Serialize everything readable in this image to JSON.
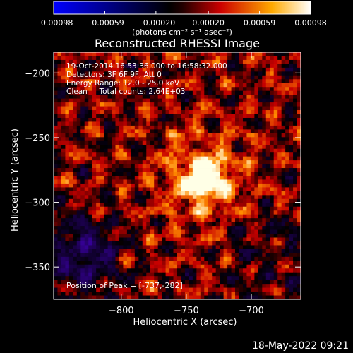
{
  "chart_data": {
    "type": "heatmap",
    "title": "Reconstructed RHESSI Image",
    "xlabel": "Heliocentric X (arcsec)",
    "ylabel": "Heliocentric Y (arcsec)",
    "xlim": [
      -852,
      -662
    ],
    "ylim": [
      -375,
      -184
    ],
    "x_ticks": [
      -800,
      -750,
      -700
    ],
    "x_tick_labels": [
      "−800",
      "−750",
      "−700"
    ],
    "y_ticks": [
      -200,
      -250,
      -300,
      -350
    ],
    "y_tick_labels": [
      "−200",
      "−250",
      "−300",
      "−350"
    ],
    "peak": {
      "x": -737,
      "y": -282
    },
    "colorbar": {
      "range": [
        -0.00098,
        0.00098
      ],
      "ticks": [
        -0.00098,
        -0.00059,
        -0.0002,
        0.0002,
        0.00059,
        0.00098
      ],
      "tick_labels": [
        "−0.00098",
        "−0.00059",
        "−0.00020",
        "0.00020",
        "0.00059",
        "0.00098"
      ],
      "label": "(photons cm⁻² s⁻¹ asec⁻²)",
      "colors": [
        "#0000ff",
        "#000000",
        "#ff0000",
        "#ffff00",
        "#ffffff"
      ]
    },
    "annotations": {
      "time_range": "19-Oct-2014 16:53:36.000 to 16:58:32.000",
      "detectors": "Detectors: 3F 6F 9F, Att 0",
      "energy_range": "Energy Range: 12.0 - 25.0 keV",
      "clean_counts": "Clean     Total counts: 2.64E+03",
      "peak_position": "Position of Peak = [-737,-282]"
    },
    "footer_timestamp": "18-May-2022 09:21"
  }
}
